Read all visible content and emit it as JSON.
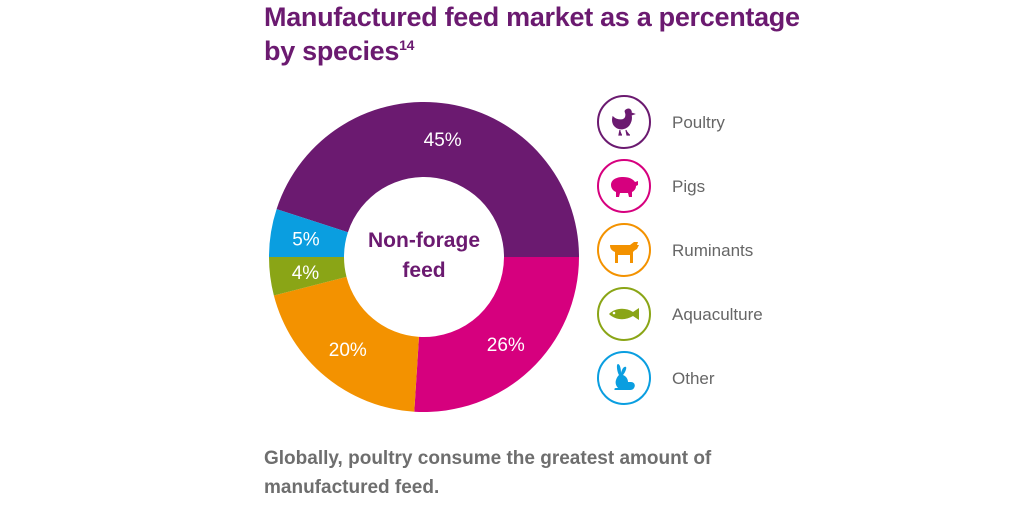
{
  "title": "Manufactured feed market as a percentage by species",
  "title_superscript": "14",
  "caption": "Globally, poultry consume the greatest amount of manufactured feed.",
  "center_label": [
    "Non-forage",
    "feed"
  ],
  "chart_data": {
    "type": "pie",
    "title": "Manufactured feed market as a percentage by species",
    "center_text": "Non-forage feed",
    "slices": [
      {
        "name": "Poultry",
        "value": 45,
        "label": "45%",
        "color": "#6b1a70",
        "icon": "chicken-icon"
      },
      {
        "name": "Pigs",
        "value": 26,
        "label": "26%",
        "color": "#d6007e",
        "icon": "pig-icon"
      },
      {
        "name": "Ruminants",
        "value": 20,
        "label": "20%",
        "color": "#f39200",
        "icon": "cow-icon"
      },
      {
        "name": "Aquaculture",
        "value": 4,
        "label": "4%",
        "color": "#8aa516",
        "icon": "fish-icon"
      },
      {
        "name": "Other",
        "value": 5,
        "label": "5%",
        "color": "#0a9ee0",
        "icon": "rabbit-icon"
      }
    ],
    "legend_position": "right"
  }
}
